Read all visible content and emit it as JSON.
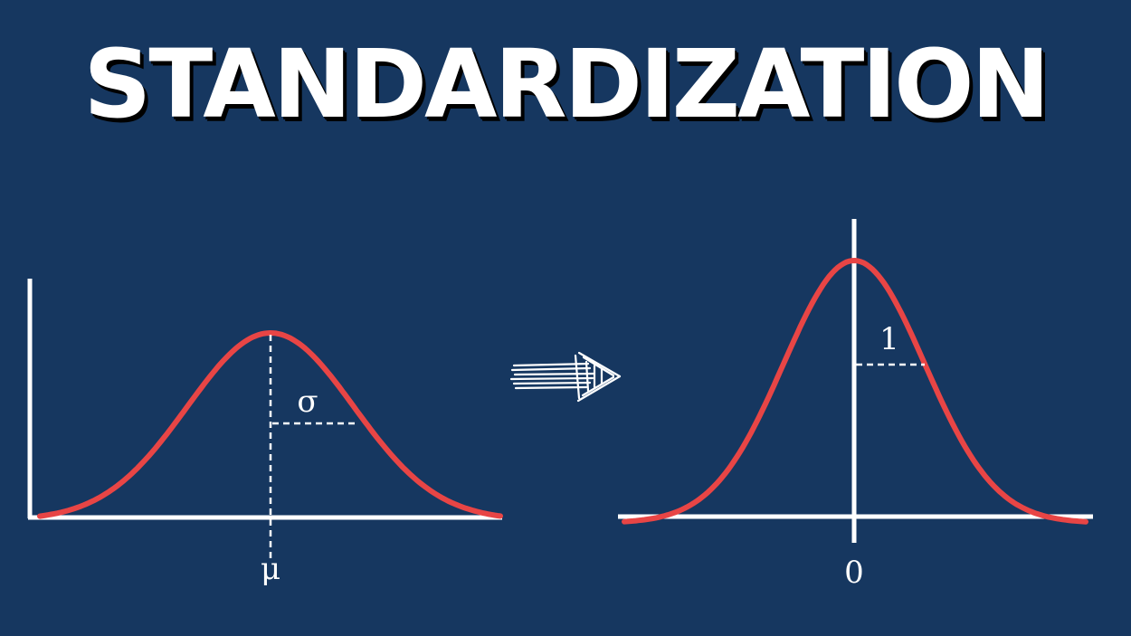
{
  "title": "STANDARDIZATION",
  "left_plot": {
    "mean_label": "μ",
    "sd_label": "σ"
  },
  "right_plot": {
    "mean_label": "0",
    "sd_label": "1"
  },
  "colors": {
    "background": "#163760",
    "curve": "#e84545",
    "axes": "#ffffff"
  },
  "icons": {
    "transform_arrow": "right-arrow-icon"
  }
}
